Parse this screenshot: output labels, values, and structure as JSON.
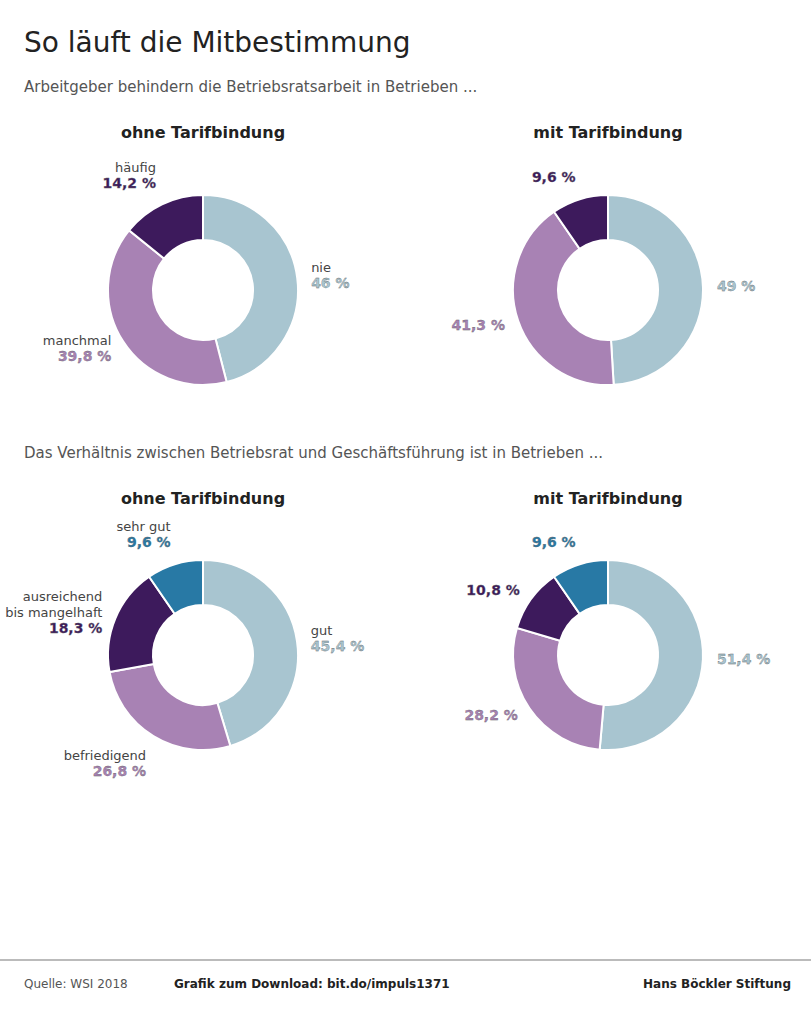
{
  "title": "So läuft die Mitbestimmung",
  "footer": [
    "Quelle: WSI 2018",
    "Grafik zum Download: bit.do/impuls1371"
  ],
  "logo": "Hans Böckler Stiftung",
  "chart_data": [
    {
      "type": "donut",
      "subtitle": "Arbeitgeber behindern die Betriebsratsarbeit in Betrieben ...",
      "title": "ohne Tarifbindung",
      "categories": [
        "nie",
        "manchmal",
        "häufig"
      ],
      "values": [
        46.0,
        39.8,
        14.2
      ],
      "value_labels": [
        "46 %",
        "39,8 %",
        "14,2 %"
      ],
      "colors": [
        "#a8c5d0",
        "#a882b4",
        "#3d1a5c"
      ],
      "data_labels": true
    },
    {
      "type": "donut",
      "title": "mit Tarifbindung",
      "categories": [
        null,
        null,
        null
      ],
      "values": [
        49.0,
        41.3,
        9.6
      ],
      "value_labels": [
        "49 %",
        "41,3 %",
        "9,6 %"
      ],
      "colors": [
        "#a8c5d0",
        "#a882b4",
        "#3d1a5c"
      ],
      "data_labels": true
    },
    {
      "type": "donut",
      "subtitle": "Das Verhältnis zwischen Betriebsrat und Geschäftsführung ist in Betrieben ...",
      "title": "ohne Tarifbindung",
      "categories": [
        "gut",
        "befriedigend",
        "ausreichend bis mangelhaft",
        "sehr gut"
      ],
      "values": [
        45.4,
        26.8,
        18.3,
        9.6
      ],
      "value_labels": [
        "45,4 %",
        "26,8 %",
        "18,3 %",
        "9,6 %"
      ],
      "colors": [
        "#a8c5d0",
        "#a882b4",
        "#3d1a5c",
        "#2879a5"
      ],
      "data_labels": true
    },
    {
      "type": "donut",
      "title": "mit Tarifbindung",
      "categories": [
        null,
        null,
        null,
        null
      ],
      "values": [
        51.4,
        28.2,
        10.8,
        9.6
      ],
      "value_labels": [
        "51,4 %",
        "28,2 %",
        "10,8 %",
        "9,6 %"
      ],
      "colors": [
        "#a8c5d0",
        "#a882b4",
        "#3d1a5c",
        "#2879a5"
      ],
      "data_labels": true
    }
  ]
}
